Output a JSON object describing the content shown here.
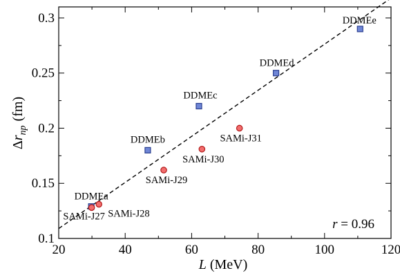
{
  "chart_data": {
    "type": "scatter",
    "title": "",
    "xlabel": {
      "var": "L",
      "unit": "(MeV)"
    },
    "ylabel": {
      "prefix": "Δ",
      "var": "r",
      "sub": "np",
      "unit": "(fm)"
    },
    "xlim": [
      20,
      120
    ],
    "ylim": [
      0.1,
      0.31
    ],
    "xticks": [
      20,
      40,
      60,
      80,
      100,
      120
    ],
    "yticks": [
      0.1,
      0.15,
      0.2,
      0.25,
      0.3
    ],
    "ytick_labels": [
      "0.1",
      "0.15",
      "0.2",
      "0.25",
      "0.3"
    ],
    "grid": false,
    "legend": "none",
    "colors": {
      "ddme_fill": "#6f86d6",
      "ddme_edge": "#2b3f8f",
      "sami_fill": "#f26d6d",
      "sami_edge": "#b01818",
      "fit_line": "#000000"
    },
    "series": [
      {
        "marker": "square",
        "points": [
          {
            "x": 29.8,
            "y": 0.129,
            "label": "DDMEa"
          },
          {
            "x": 46.8,
            "y": 0.18,
            "label": "DDMEb"
          },
          {
            "x": 62.2,
            "y": 0.22,
            "label": "DDMEc"
          },
          {
            "x": 85.4,
            "y": 0.25,
            "label": "DDMEd"
          },
          {
            "x": 110.7,
            "y": 0.29,
            "label": "DDMEe"
          }
        ]
      },
      {
        "marker": "circle",
        "points": [
          {
            "x": 29.9,
            "y": 0.128,
            "label": "SAMi-J27"
          },
          {
            "x": 32.1,
            "y": 0.131,
            "label": "SAMi-J28"
          },
          {
            "x": 51.6,
            "y": 0.162,
            "label": "SAMi-J29"
          },
          {
            "x": 63.1,
            "y": 0.181,
            "label": "SAMi-J30"
          },
          {
            "x": 74.4,
            "y": 0.2,
            "label": "SAMi-J31"
          }
        ]
      }
    ],
    "fit_line": {
      "x": [
        20,
        120
      ],
      "y": [
        0.109,
        0.318
      ],
      "style": "dashed"
    },
    "annotation": {
      "var": "r",
      "text": " = 0.96"
    }
  }
}
